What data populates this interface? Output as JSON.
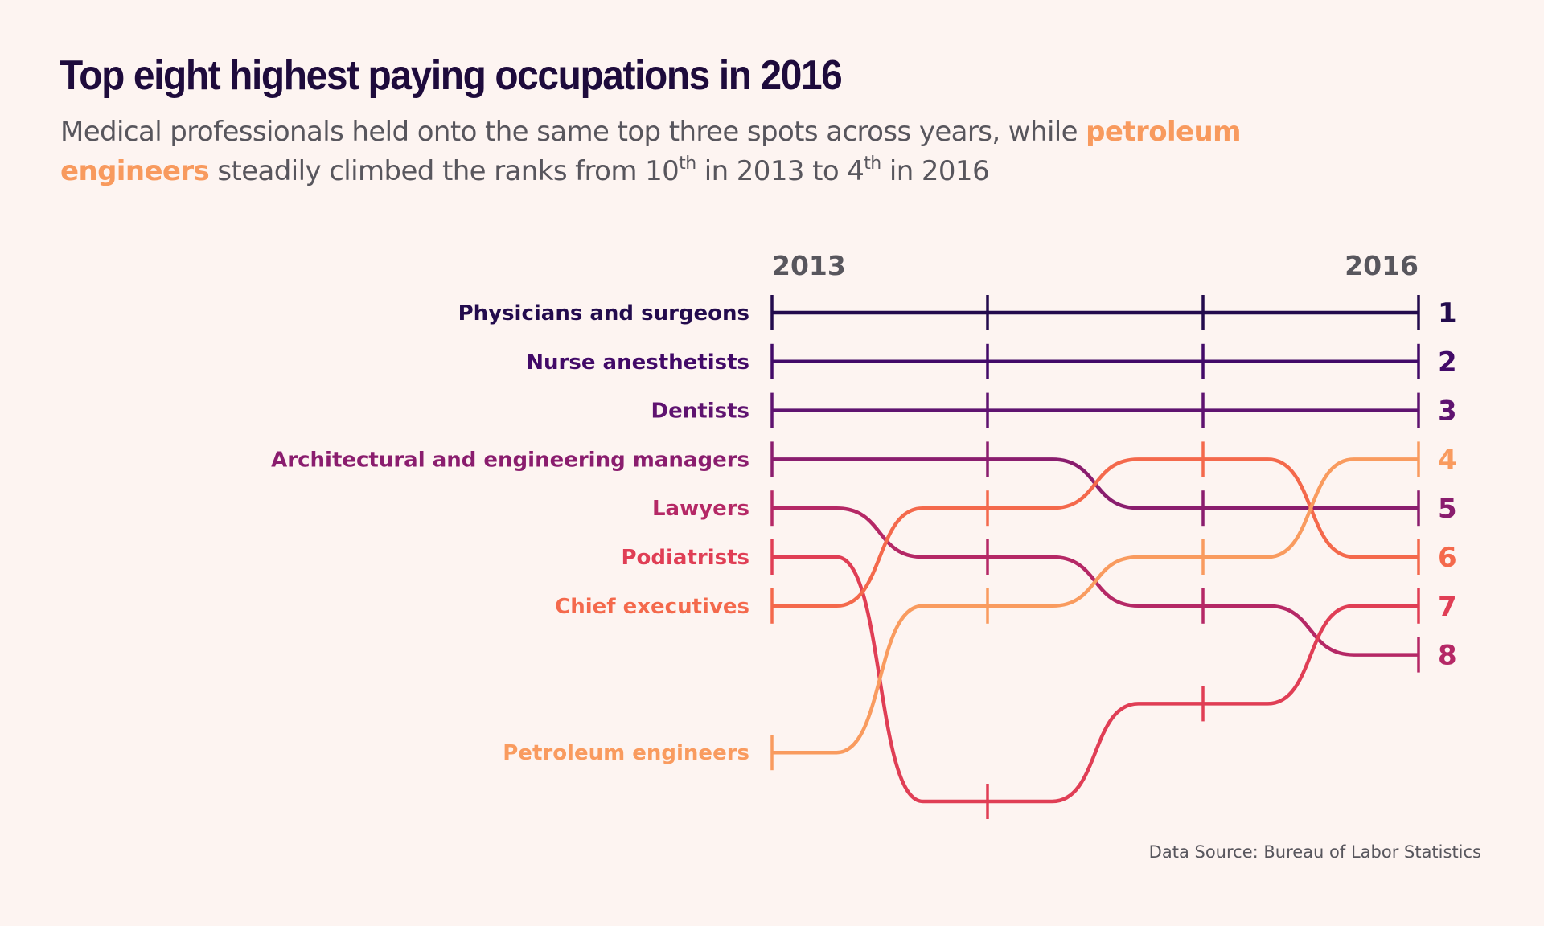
{
  "header": {
    "title": "Top eight highest paying occupations in 2016",
    "subtitle_parts": {
      "p1": "Medical professionals held onto the same top three spots across years, while ",
      "highlight": "petroleum engineers",
      "p2": " steadily climbed the ranks from 10",
      "sup1": "th",
      "p3": " in 2013 to 4",
      "sup2": "th",
      "p4": " in 2016"
    }
  },
  "footer": {
    "source": "Data Source: Bureau of Labor Statistics"
  },
  "chart_data": {
    "type": "bump",
    "title": "Top eight highest paying occupations in 2016",
    "x_labels": [
      "2013",
      "",
      "",
      "2016"
    ],
    "time_points": 4,
    "rank_range": [
      1,
      11
    ],
    "end_rank_labels": [
      "1",
      "2",
      "3",
      "4",
      "5",
      "6",
      "7",
      "8"
    ],
    "series": [
      {
        "name": "Physicians and surgeons",
        "color": "#230b4d",
        "ranks": [
          1,
          1,
          1,
          1
        ]
      },
      {
        "name": "Nurse anesthetists",
        "color": "#420a68",
        "ranks": [
          2,
          2,
          2,
          2
        ]
      },
      {
        "name": "Dentists",
        "color": "#5f1370",
        "ranks": [
          3,
          3,
          3,
          3
        ]
      },
      {
        "name": "Architectural and engineering managers",
        "color": "#8a1d6e",
        "ranks": [
          4,
          4,
          5,
          5
        ]
      },
      {
        "name": "Lawyers",
        "color": "#b52866",
        "ranks": [
          5,
          6,
          7,
          8
        ]
      },
      {
        "name": "Podiatrists",
        "color": "#e03e55",
        "ranks": [
          6,
          11,
          9,
          7
        ]
      },
      {
        "name": "Chief executives",
        "color": "#f4694c",
        "ranks": [
          7,
          5,
          4,
          6
        ]
      },
      {
        "name": "Petroleum engineers",
        "color": "#f99b5f",
        "ranks": [
          10,
          7,
          6,
          4
        ]
      }
    ]
  }
}
